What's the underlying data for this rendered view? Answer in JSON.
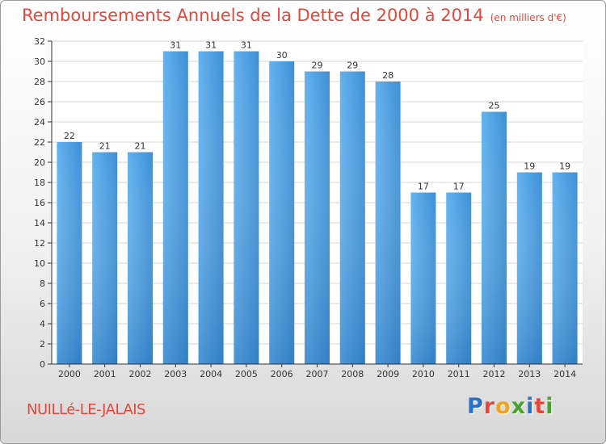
{
  "header": {
    "title": "Remboursements Annuels de la Dette de 2000 à 2014",
    "unit": "(en milliers d'€)"
  },
  "footer": {
    "commune": "NUILLé-LE-JALAIS",
    "logo_text": "Proxiti",
    "logo_colors": [
      "#2a6fc9",
      "#e8463a",
      "#f2a51a",
      "#4aa02c",
      "#2a6fc9",
      "#e8463a",
      "#4aa02c"
    ]
  },
  "colors": {
    "bar": "#3d8fd6",
    "bar_light": "#63b2ee",
    "bar_dark": "#2d78bf",
    "title": "#e8463a",
    "axis": "#333333"
  },
  "chart_data": {
    "type": "bar",
    "title": "Remboursements Annuels de la Dette de 2000 à 2014",
    "categories": [
      "2000",
      "2001",
      "2002",
      "2003",
      "2004",
      "2005",
      "2006",
      "2007",
      "2008",
      "2009",
      "2010",
      "2011",
      "2012",
      "2013",
      "2014"
    ],
    "values": [
      22,
      21,
      21,
      31,
      31,
      31,
      30,
      29,
      29,
      28,
      17,
      17,
      25,
      19,
      19
    ],
    "ylim": [
      0,
      32
    ],
    "yticks": [
      0,
      2,
      4,
      6,
      8,
      10,
      12,
      14,
      16,
      18,
      20,
      22,
      24,
      26,
      28,
      30,
      32
    ],
    "grid": true,
    "data_labels": true
  }
}
